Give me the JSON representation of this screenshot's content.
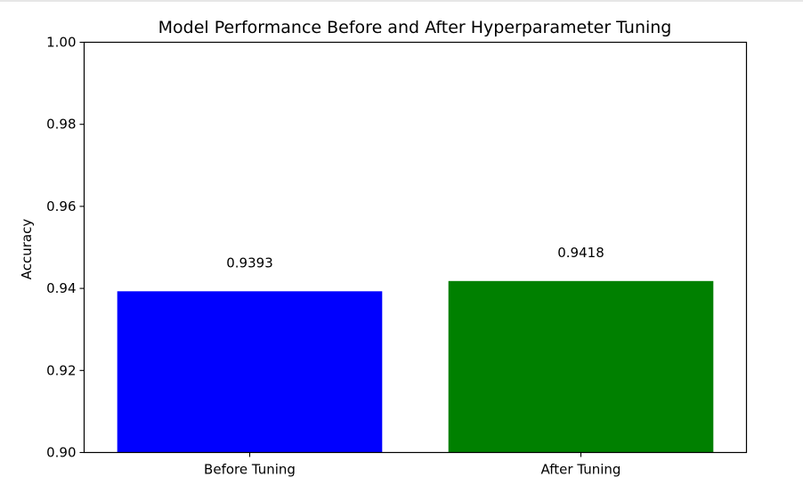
{
  "chart_data": {
    "type": "bar",
    "title": "Model Performance Before and After Hyperparameter Tuning",
    "xlabel": "",
    "ylabel": "Accuracy",
    "categories": [
      "Before Tuning",
      "After Tuning"
    ],
    "values": [
      0.9393,
      0.9418
    ],
    "value_labels": [
      "0.9393",
      "0.9418"
    ],
    "colors": [
      "#0000ff",
      "#008000"
    ],
    "ylim": [
      0.9,
      1.0
    ],
    "yticks": [
      0.9,
      0.92,
      0.94,
      0.96,
      0.98,
      1.0
    ],
    "ytick_labels": [
      "0.90",
      "0.92",
      "0.94",
      "0.96",
      "0.98",
      "1.00"
    ],
    "grid": false,
    "legend": "none"
  }
}
